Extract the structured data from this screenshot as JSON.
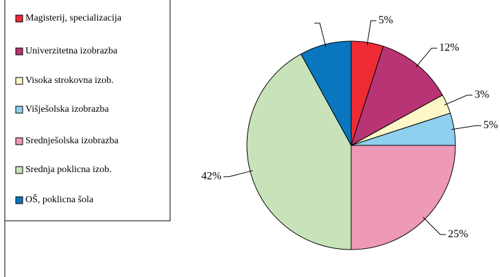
{
  "chart_data": {
    "type": "pie",
    "categories": [
      "Magisterij, specializacija",
      "Univerzitetna izobrazba",
      "Visoka strokovna izob.",
      "Višješolska izobrazba",
      "Srednješolska izobrazba",
      "Srednja poklicna izob.",
      "OŠ, poklicna šola"
    ],
    "values": [
      5,
      12,
      3,
      5,
      25,
      42,
      8
    ],
    "value_labels": [
      "5%",
      "12%",
      "3%",
      "5%",
      "25%",
      "42%",
      null
    ],
    "colors": [
      "#ee2b35",
      "#b83474",
      "#fdf6c8",
      "#8fd0ef",
      "#ee99b7",
      "#c8e3b9",
      "#0b76c0"
    ],
    "legend": "left"
  }
}
